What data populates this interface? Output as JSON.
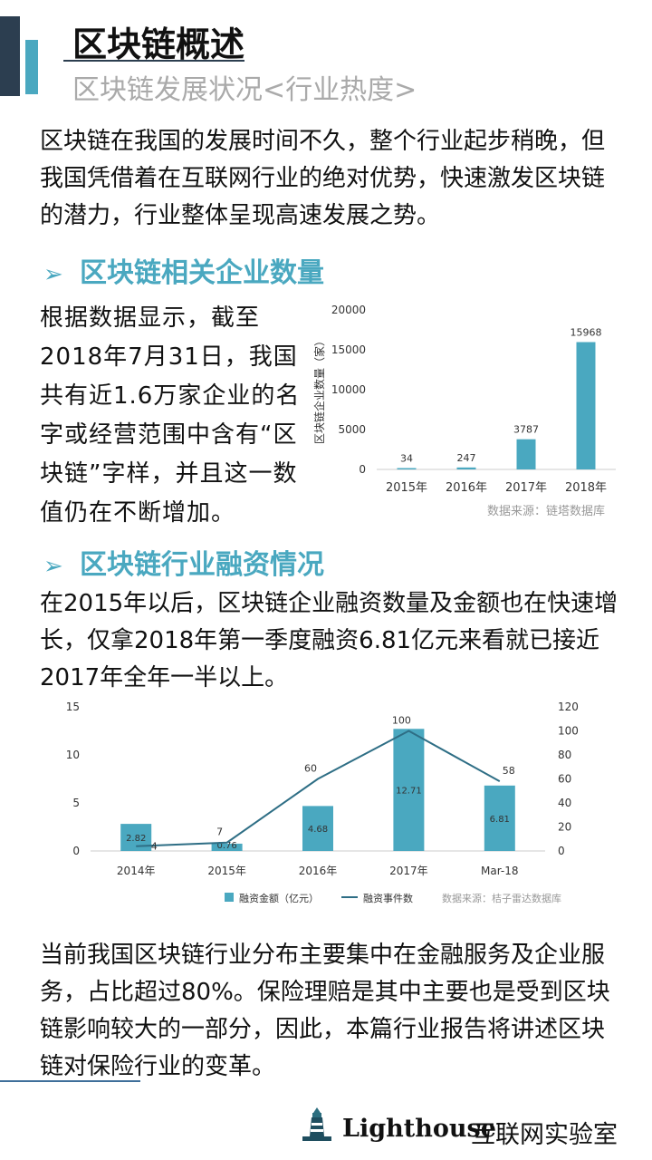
{
  "header": {
    "title": "区块链概述",
    "subtitle": "区块链发展状况<行业热度>"
  },
  "intro": "区块链在我国的发展时间不久，整个行业起步稍晚，但我国凭借着在互联网行业的绝对优势，快速激发区块链的潜力，行业整体呈现高速发展之势。",
  "section1": {
    "heading": "区块链相关企业数量",
    "text": "根据数据显示，截至2018年7月31日，我国共有近1.6万家企业的名字或经营范围中含有“区块链”字样，并且这一数值仍在不断增加。"
  },
  "section2": {
    "heading": "区块链行业融资情况",
    "text": "在2015年以后，区块链企业融资数量及金额也在快速增长，仅拿2018年第一季度融资6.81亿元来看就已接近2017年全年一半以上。"
  },
  "conclusion": "当前我国区块链行业分布主要集中在金融服务及企业服务，占比超过80%。保险理赔是其中主要也是受到区块链影响较大的一部分，因此，本篇行业报告将讲述区块链对保险行业的变革。",
  "footer": {
    "brand": "Lighthouse",
    "brand_cn": "互联网实验室"
  },
  "chart_data": [
    {
      "type": "bar",
      "categories": [
        "2015年",
        "2016年",
        "2017年",
        "2018年"
      ],
      "values": [
        34,
        247,
        3787,
        15968
      ],
      "data_labels": [
        "34",
        "247",
        "3787",
        "15968"
      ],
      "ylabel": "区块链企业数量（家）",
      "ylim": [
        0,
        20000
      ],
      "yticks": [
        0,
        5000,
        10000,
        15000,
        20000
      ],
      "grid": false,
      "color": "#4aa8c0",
      "source": "数据来源：链塔数据库"
    },
    {
      "type": "bar",
      "categories": [
        "2014年",
        "2015年",
        "2016年",
        "2017年",
        "Mar-18"
      ],
      "series": [
        {
          "name": "融资金额（亿元）",
          "type": "bar",
          "axis": "left",
          "values": [
            2.82,
            0.76,
            4.68,
            12.71,
            6.81
          ],
          "labels": [
            "2.82",
            "0.76",
            "4.68",
            "12.71",
            "6.81"
          ],
          "color": "#4aa8c0"
        },
        {
          "name": "融资事件数",
          "type": "line",
          "axis": "right",
          "values": [
            4,
            7,
            60,
            100,
            58
          ],
          "labels": [
            "4",
            "7",
            "60",
            "100",
            "58"
          ],
          "color": "#2e6e85"
        }
      ],
      "ylim_left": [
        0,
        15
      ],
      "yticks_left": [
        0,
        5,
        10,
        15
      ],
      "ylim_right": [
        0,
        120
      ],
      "yticks_right": [
        0,
        20,
        40,
        60,
        80,
        100,
        120
      ],
      "legend_position": "bottom",
      "source": "数据来源：桔子雷达数据库"
    }
  ]
}
